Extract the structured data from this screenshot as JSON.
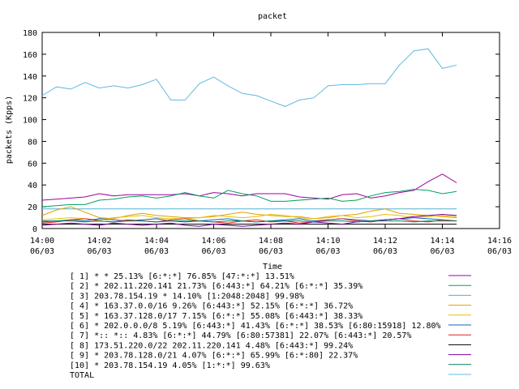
{
  "chart_data": {
    "type": "line",
    "title": "packet",
    "xlabel": "Time",
    "ylabel": "packets (Kpps)",
    "ylim": [
      0,
      180
    ],
    "yticks": [
      0,
      20,
      40,
      60,
      80,
      100,
      120,
      140,
      160,
      180
    ],
    "xlim": [
      "06/03 14:00",
      "06/03 14:16"
    ],
    "xticks": [
      {
        "time": "14:00",
        "date": "06/03"
      },
      {
        "time": "14:02",
        "date": "06/03"
      },
      {
        "time": "14:04",
        "date": "06/03"
      },
      {
        "time": "14:06",
        "date": "06/03"
      },
      {
        "time": "14:08",
        "date": "06/03"
      },
      {
        "time": "14:10",
        "date": "06/03"
      },
      {
        "time": "14:12",
        "date": "06/03"
      },
      {
        "time": "14:14",
        "date": "06/03"
      },
      {
        "time": "14:16",
        "date": "06/03"
      }
    ],
    "grid": false,
    "legend_position": "bottom",
    "x": [
      "14:00:00",
      "14:00:30",
      "14:01:00",
      "14:01:30",
      "14:02:00",
      "14:02:30",
      "14:03:00",
      "14:03:30",
      "14:04:00",
      "14:04:30",
      "14:05:00",
      "14:05:30",
      "14:06:00",
      "14:06:30",
      "14:07:00",
      "14:07:30",
      "14:08:00",
      "14:08:30",
      "14:09:00",
      "14:09:30",
      "14:10:00",
      "14:10:30",
      "14:11:00",
      "14:11:30",
      "14:12:00",
      "14:12:30",
      "14:13:00",
      "14:13:30",
      "14:14:00",
      "14:14:30"
    ],
    "series": [
      {
        "name": "[ 1] * * 25.13%  [6:*:*] 76.85% [47:*:*] 13.51%",
        "color": "#a000a0",
        "values": [
          26,
          27,
          28,
          29,
          32,
          30,
          31,
          31,
          31,
          31,
          32,
          30,
          33,
          32,
          30,
          32,
          32,
          32,
          29,
          28,
          27,
          31,
          32,
          28,
          30,
          33,
          35,
          43,
          50,
          42
        ]
      },
      {
        "name": "[ 2] * 202.11.220.141 21.73%  [6:443:*] 64.21% [6:*:*] 35.39%",
        "color": "#00a060",
        "values": [
          20,
          21,
          22,
          22,
          26,
          27,
          29,
          30,
          28,
          30,
          33,
          30,
          28,
          35,
          32,
          30,
          25,
          25,
          26,
          27,
          28,
          25,
          26,
          30,
          33,
          34,
          36,
          35,
          32,
          34
        ]
      },
      {
        "name": "[ 3] 203.78.154.19 * 14.10%  [1:2048:2048] 99.98%",
        "color": "#50b0d0",
        "values": [
          18,
          18,
          18,
          18,
          18,
          18,
          18,
          18,
          18,
          18,
          18,
          18,
          18,
          18,
          18,
          18,
          18,
          18,
          18,
          18,
          18,
          18,
          18,
          18,
          18,
          18,
          18,
          18,
          18,
          18
        ]
      },
      {
        "name": "[ 4] * 163.37.0.0/16 9.26%  [6:443:*] 52.15% [6:*:*] 36.72%",
        "color": "#e0a000",
        "values": [
          12,
          17,
          20,
          15,
          10,
          9,
          12,
          14,
          12,
          11,
          10,
          10,
          11,
          13,
          15,
          13,
          12,
          11,
          11,
          9,
          10,
          12,
          13,
          16,
          18,
          14,
          13,
          12,
          11,
          10
        ]
      },
      {
        "name": "[ 5] * 163.37.128.0/17 7.15%  [6:*:*] 55.08% [6:443:*] 38.33%",
        "color": "#e8c000",
        "values": [
          8,
          9,
          10,
          9,
          8,
          10,
          11,
          12,
          10,
          9,
          9,
          10,
          12,
          11,
          10,
          11,
          13,
          12,
          10,
          9,
          11,
          12,
          10,
          11,
          13,
          12,
          10,
          11,
          12,
          11
        ]
      },
      {
        "name": "[ 6] * 202.0.0.0/8 5.19%  [6:443:*] 41.43% [6:*:*] 38.53% [6:80:15918] 12.80%",
        "color": "#1060c0",
        "values": [
          6,
          7,
          8,
          7,
          9,
          8,
          7,
          8,
          9,
          7,
          6,
          7,
          8,
          9,
          7,
          6,
          7,
          8,
          9,
          7,
          8,
          9,
          8,
          7,
          8,
          9,
          10,
          9,
          8,
          7
        ]
      },
      {
        "name": "[ 7] *:: *:: 4.83%  [6:*:*] 44.79% [6:80:57381] 22.07% [6:443:*] 20.57%",
        "color": "#e02020",
        "values": [
          5,
          6,
          8,
          9,
          7,
          6,
          8,
          7,
          6,
          8,
          9,
          7,
          6,
          5,
          7,
          8,
          6,
          7,
          5,
          6,
          8,
          9,
          7,
          6,
          8,
          9,
          7,
          6,
          8,
          7
        ]
      },
      {
        "name": "[ 8] 173.51.220.0/22 202.11.220.141 4.48%  [6:443:*] 99.24%",
        "color": "#000000",
        "values": [
          4,
          4,
          4,
          4,
          4,
          4,
          4,
          4,
          4,
          4,
          4,
          4,
          4,
          4,
          4,
          4,
          4,
          4,
          4,
          4,
          4,
          4,
          4,
          4,
          4,
          4,
          4,
          4,
          4,
          4
        ]
      },
      {
        "name": "[ 9] * 203.78.128.0/21 4.07%  [6:*:*] 65.99% [6:*:80] 22.37%",
        "color": "#8000a0",
        "values": [
          3,
          4,
          5,
          4,
          3,
          5,
          4,
          3,
          4,
          5,
          3,
          2,
          4,
          3,
          2,
          3,
          4,
          5,
          4,
          6,
          5,
          4,
          6,
          7,
          8,
          9,
          11,
          12,
          13,
          12
        ]
      },
      {
        "name": "[10] * 203.78.154.19 4.05%  [1:*:*] 99.63%",
        "color": "#008060",
        "values": [
          7,
          7,
          7,
          6,
          7,
          6,
          7,
          7,
          6,
          7,
          7,
          7,
          6,
          7,
          7,
          6,
          7,
          7,
          7,
          6,
          7,
          7,
          6,
          7,
          7,
          7,
          6,
          7,
          7,
          7
        ]
      },
      {
        "name": "TOTAL",
        "color": "#60b8e0",
        "values": [
          122,
          130,
          128,
          134,
          129,
          131,
          129,
          132,
          137,
          118,
          118,
          133,
          139,
          131,
          124,
          122,
          117,
          112,
          118,
          120,
          131,
          132,
          132,
          133,
          133,
          150,
          163,
          165,
          147,
          150
        ]
      }
    ]
  }
}
